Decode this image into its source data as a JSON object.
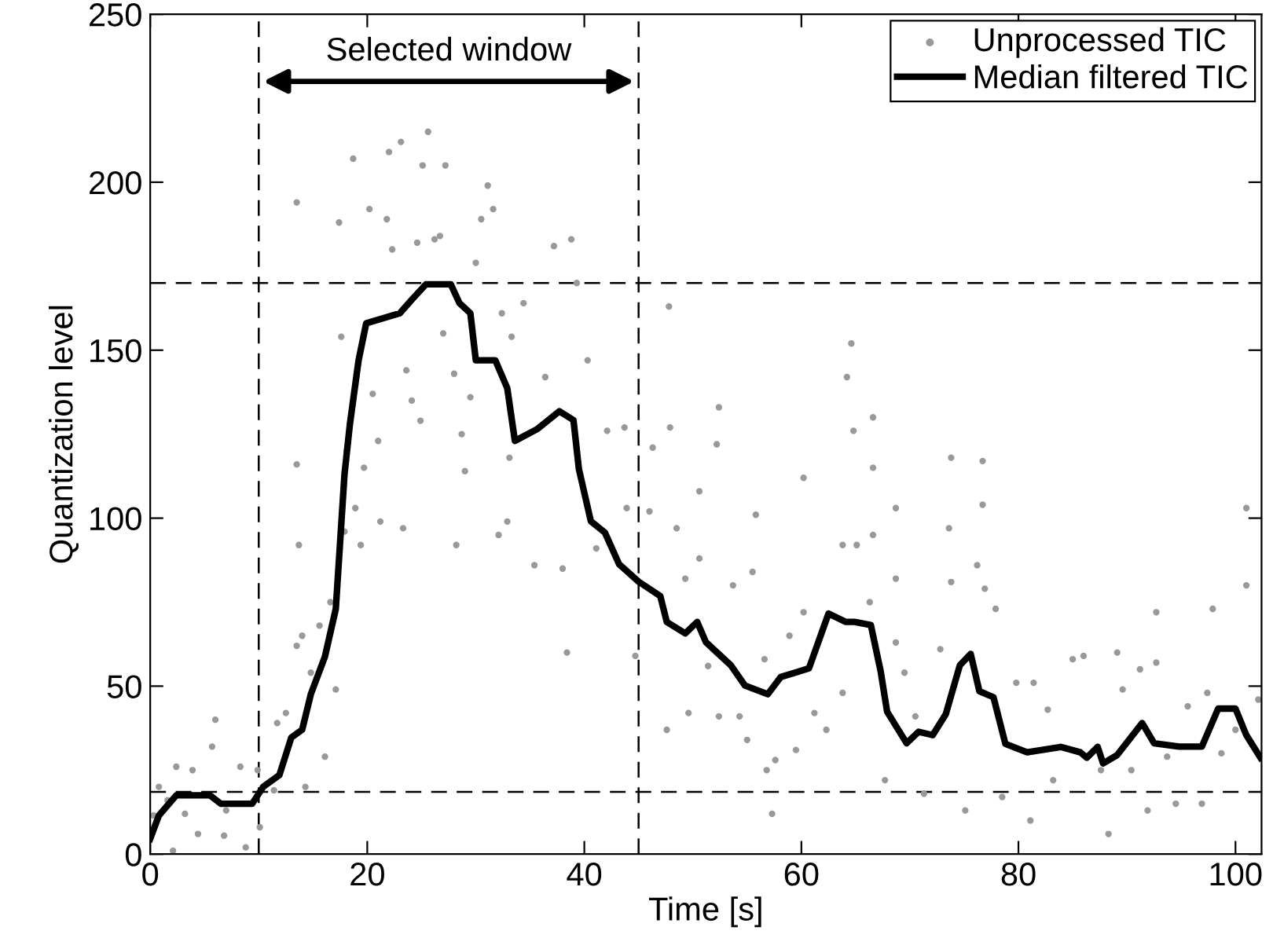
{
  "chart_data": {
    "type": "scatter",
    "xlabel": "Time [s]",
    "ylabel": "Quantization level",
    "xlim": [
      0,
      102.4
    ],
    "ylim": [
      0,
      250
    ],
    "xticks": [
      0,
      20,
      40,
      60,
      80,
      100
    ],
    "yticks": [
      0,
      50,
      100,
      150,
      200,
      250
    ],
    "grid": false,
    "legend": "top right",
    "series": [
      {
        "name": "Unprocessed TIC",
        "color": "#999999",
        "marker": "circle",
        "x": [
          0.3,
          0.8,
          1.6,
          2.1,
          2.4,
          3.2,
          3.9,
          4.4,
          5.7,
          6,
          6.8,
          7,
          8.3,
          8.8,
          9.9,
          10.1,
          11.4,
          11.7,
          12.5,
          13.5,
          13.7,
          13.5,
          13.5,
          14.3,
          14,
          14.8,
          15.6,
          16.1,
          16.6,
          17.1,
          17.4,
          17.6,
          17.9,
          18.1,
          18.7,
          18.9,
          19.4,
          19.7,
          20.2,
          20.5,
          21,
          21.2,
          21.8,
          22,
          22.3,
          23.1,
          23.3,
          23.6,
          24.1,
          24.6,
          24.9,
          25.1,
          25.6,
          26.2,
          26.7,
          27,
          27.2,
          28,
          28.2,
          28.7,
          29,
          29.5,
          30,
          30.5,
          31.1,
          31.6,
          32.1,
          32.4,
          32.9,
          33.1,
          33.3,
          34.4,
          35.4,
          36.4,
          37.2,
          38.8,
          38,
          38.4,
          39.3,
          40.3,
          41.1,
          42.1,
          43.7,
          43.9,
          44.7,
          46.3,
          46,
          47.8,
          47.9,
          48.5,
          49.3,
          47.6,
          49.6,
          50.6,
          50.6,
          51.4,
          52.2,
          52.4,
          52.4,
          53.7,
          54.3,
          55,
          55.5,
          55.8,
          56.6,
          56.8,
          57.3,
          57.6,
          58.9,
          59.5,
          60.2,
          60.2,
          61.2,
          62.3,
          63.8,
          64.2,
          64.6,
          64.8,
          63.8,
          65.1,
          66.6,
          66.6,
          66.6,
          66.3,
          68.7,
          67.7,
          68.7,
          68.7,
          69.5,
          70.5,
          71.3,
          72.8,
          73.6,
          73.8,
          73.8,
          75.1,
          76.2,
          76.7,
          76.7,
          76.9,
          77.9,
          78.5,
          79.8,
          81.1,
          81.4,
          82.7,
          83.2,
          85,
          86,
          87.6,
          88.3,
          89.1,
          89.6,
          90.4,
          91.2,
          91.9,
          92.7,
          92.7,
          93.7,
          94.5,
          95.6,
          96.9,
          97.4,
          97.9,
          98.7,
          100,
          101,
          101,
          102.1
        ],
        "values": [
          11.5,
          20,
          16,
          1,
          26,
          12,
          25,
          6,
          32,
          40,
          5.5,
          13,
          26,
          2,
          25,
          8,
          19,
          39,
          42,
          62,
          92,
          116,
          194,
          20,
          65,
          54,
          68,
          29,
          75,
          49,
          188,
          154,
          96,
          120,
          207,
          103,
          92,
          115,
          192,
          137,
          123,
          99,
          189,
          209,
          180,
          212,
          97,
          144,
          135,
          182,
          129,
          205,
          215,
          183,
          184,
          155,
          205,
          143,
          92,
          125,
          114,
          136,
          176,
          189,
          199,
          192,
          95,
          161,
          99,
          118,
          154,
          164,
          86,
          142,
          181,
          183,
          85,
          60,
          170,
          147,
          91,
          126,
          127,
          103,
          59,
          121,
          102,
          163,
          127,
          97,
          82,
          37,
          42,
          108,
          88,
          56,
          122,
          133,
          41,
          80,
          41,
          34,
          84,
          101,
          58,
          25,
          12,
          28,
          65,
          31,
          112,
          72,
          42,
          37,
          92,
          142,
          152,
          126,
          48,
          92,
          130,
          115,
          95,
          75,
          82,
          22,
          63,
          103,
          54,
          41,
          18,
          61,
          97,
          118,
          81,
          13,
          86,
          104,
          117,
          79,
          73,
          17,
          51,
          10,
          51,
          43,
          22,
          58,
          59,
          25,
          6,
          60,
          49,
          25,
          55,
          13,
          72,
          57,
          29,
          15,
          44,
          15,
          48,
          73,
          30,
          37,
          103,
          80,
          46
        ]
      },
      {
        "name": "Median filtered TIC",
        "type": "line",
        "color": "#000000",
        "marker": "none",
        "line_style": "solid",
        "x": [
          0,
          0.8,
          2.4,
          5.5,
          6.5,
          9.4,
          10.4,
          11.9,
          13,
          14,
          14.8,
          16.1,
          17.1,
          17.9,
          18.4,
          19.2,
          19.9,
          23,
          24.1,
          25.4,
          27.7,
          28.5,
          29.5,
          30,
          31.8,
          32.9,
          33.6,
          35.7,
          37.7,
          39,
          39.5,
          40.6,
          41.9,
          43.2,
          45,
          47,
          47.6,
          49.3,
          50.4,
          51.2,
          53.5,
          54.8,
          56.9,
          58.1,
          60.7,
          62.5,
          64.1,
          64.9,
          66.4,
          67.3,
          67.9,
          69.7,
          70.8,
          72.1,
          73.3,
          74.6,
          75.6,
          76.4,
          77.7,
          78.8,
          80.8,
          83.9,
          85.7,
          86.3,
          87.3,
          87.8,
          89.1,
          91.4,
          92.5,
          94.8,
          96.9,
          98.4,
          100,
          101,
          102.3
        ],
        "values": [
          4.6,
          11.5,
          17.5,
          17.5,
          15,
          15,
          20,
          23.5,
          34.7,
          37,
          47.6,
          58.8,
          73,
          113,
          128,
          147,
          158,
          161,
          165,
          169.6,
          169.6,
          164,
          161,
          147,
          147,
          138.7,
          123,
          126.6,
          131.8,
          129.2,
          114.6,
          99.1,
          95.7,
          86.3,
          81.1,
          76.8,
          69.1,
          65.7,
          69.1,
          63.1,
          56.2,
          50.2,
          47.6,
          52.7,
          55.3,
          71.6,
          69.1,
          69.1,
          68.2,
          54.5,
          42.4,
          33,
          36.4,
          35.4,
          41.6,
          56.2,
          59.6,
          48.5,
          46.7,
          32.8,
          30.3,
          31.9,
          30.3,
          28.7,
          31.9,
          27,
          29.5,
          39,
          33,
          32,
          32,
          43.3,
          43.3,
          35.4,
          28.7
        ]
      }
    ],
    "ref_lines": [
      {
        "axis": "x",
        "value": 10,
        "color": "#000000",
        "line_style": "dashed"
      },
      {
        "axis": "x",
        "value": 45,
        "color": "#000000",
        "line_style": "dashed"
      },
      {
        "axis": "y",
        "value": 170,
        "color": "#000000",
        "line_style": "dashed"
      },
      {
        "axis": "y",
        "value": 18.5,
        "color": "#000000",
        "line_style": "dashed"
      }
    ],
    "annotations": [
      "Selected window"
    ]
  }
}
